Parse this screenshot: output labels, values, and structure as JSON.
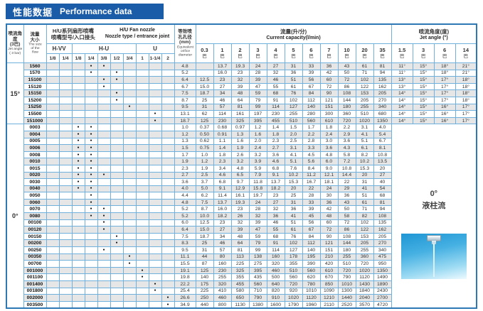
{
  "banner": {
    "title_zh": "性能数据",
    "title_en": "Performance data"
  },
  "header": {
    "col_angle_zh": "喷流角度\n(3巴)",
    "col_angle_en": "Jet angle\n( 3 bar)",
    "col_flow_zh": "流量\n大小",
    "col_flow_en": "The size\nof the\nflow",
    "nozzle_zh": "H/U系列扇形喷嘴\n喷嘴型号/入口接头",
    "nozzle_en": "H/U  Fan nozzle\nNozzle type / entrance joint",
    "groups": [
      "H-VV",
      "H-U",
      "U"
    ],
    "joints": [
      "1/8",
      "1/4",
      "1/8",
      "1/4",
      "3/8",
      "1/2",
      "3/4",
      "1",
      "1-1/4",
      "2"
    ],
    "orifice_zh": "等效喷\n孔孔径\n(mm)",
    "orifice_en": "Equivalent\norifice\ndiameter",
    "capacity_zh": "流量(升/分)",
    "capacity_en": "Current capacity(l/min)",
    "pressures": [
      "0.3",
      "1",
      "2",
      "3",
      "4",
      "5",
      "6",
      "7",
      "10",
      "20",
      "35"
    ],
    "pressure_unit": "巴",
    "angle_zh": "喷流角度(度)",
    "angle_en": "Jet angle (°)",
    "angle_pressures": [
      "1.5",
      "3",
      "6",
      "14"
    ],
    "dot_glyph": "●"
  },
  "groups": [
    {
      "angle": "15°",
      "rows": [
        {
          "model": "1560",
          "joints": [
            3,
            4
          ],
          "orifice": "4.8",
          "flow": [
            "",
            "13.7",
            "19.3",
            "24",
            "27",
            "31",
            "33",
            "36",
            "43",
            "61",
            "81"
          ],
          "angles": [
            "11°",
            "15°",
            "18°",
            "21°"
          ]
        },
        {
          "model": "1570",
          "joints": [
            3,
            5
          ],
          "orifice": "5.2",
          "flow": [
            "",
            "16.0",
            "23",
            "28",
            "32",
            "36",
            "39",
            "42",
            "50",
            "71",
            "94"
          ],
          "angles": [
            "11°",
            "15°",
            "18°",
            "21°"
          ]
        },
        {
          "model": "15100",
          "joints": [
            4,
            5
          ],
          "orifice": "6.4",
          "flow": [
            "12.5",
            "23",
            "32",
            "39",
            "46",
            "51",
            "56",
            "60",
            "72",
            "102",
            "135"
          ],
          "angles": [
            "13°",
            "15°",
            "17°",
            "18°"
          ]
        },
        {
          "model": "15120",
          "joints": [
            4
          ],
          "orifice": "6.7",
          "flow": [
            "15.0",
            "27",
            "39",
            "47",
            "55",
            "61",
            "67",
            "72",
            "86",
            "122",
            "162"
          ],
          "angles": [
            "13°",
            "15°",
            "17°",
            "18°"
          ]
        },
        {
          "model": "15150",
          "joints": [
            5
          ],
          "orifice": "7.5",
          "flow": [
            "18.7",
            "34",
            "48",
            "59",
            "68",
            "76",
            "84",
            "90",
            "108",
            "153",
            "205"
          ],
          "angles": [
            "14°",
            "15°",
            "17°",
            "18°"
          ]
        },
        {
          "model": "15200",
          "joints": [
            5
          ],
          "orifice": "8.7",
          "flow": [
            "25",
            "46",
            "64",
            "79",
            "91",
            "102",
            "112",
            "121",
            "144",
            "205",
            "270"
          ],
          "angles": [
            "14°",
            "15°",
            "17°",
            "18°"
          ]
        },
        {
          "model": "15250",
          "joints": [
            6
          ],
          "orifice": "9.5",
          "flow": [
            "31",
            "57",
            "81",
            "99",
            "114",
            "127",
            "140",
            "151",
            "180",
            "255",
            "340"
          ],
          "angles": [
            "14°",
            "15°",
            "16°",
            "17°"
          ]
        },
        {
          "model": "15500",
          "joints": [
            8
          ],
          "orifice": "13.1",
          "flow": [
            "62",
            "114",
            "161",
            "197",
            "230",
            "255",
            "280",
            "300",
            "360",
            "510",
            "680"
          ],
          "angles": [
            "14°",
            "15°",
            "16°",
            "17°"
          ]
        },
        {
          "model": "151000",
          "joints": [
            8
          ],
          "orifice": "18.7",
          "flow": [
            "125",
            "230",
            "325",
            "395",
            "455",
            "510",
            "560",
            "610",
            "720",
            "1020",
            "1350"
          ],
          "angles": [
            "14°",
            "15°",
            "16°",
            "17°"
          ]
        }
      ]
    },
    {
      "angle": "0°",
      "stream": {
        "angle_label": "0°",
        "type_label": "液柱流"
      },
      "rows": [
        {
          "model": "0003",
          "joints": [
            2,
            3
          ],
          "orifice": "1.0",
          "flow": [
            "0.37",
            "0.68",
            "0.97",
            "1.2",
            "1.4",
            "1.5",
            "1.7",
            "1.8",
            "2.2",
            "3.1",
            "4.0"
          ]
        },
        {
          "model": "0004",
          "joints": [
            2,
            3
          ],
          "orifice": "1.2",
          "flow": [
            "0.50",
            "0.91",
            "1.3",
            "1.6",
            "1.8",
            "2.0",
            "2.2",
            "2.4",
            "2.9",
            "4.1",
            "5.4"
          ]
        },
        {
          "model": "0005",
          "joints": [
            2,
            3
          ],
          "orifice": "1.3",
          "flow": [
            "0.62",
            "1.1",
            "1.6",
            "2.0",
            "2.3",
            "2.5",
            "2.8",
            "3.0",
            "3.6",
            "5.1",
            "6.7"
          ]
        },
        {
          "model": "0006",
          "joints": [
            2,
            3
          ],
          "orifice": "1.5",
          "flow": [
            "0.75",
            "1.4",
            "1.9",
            "2.4",
            "2.7",
            "3.1",
            "3.3",
            "3.6",
            "4.3",
            "6.1",
            "8.1"
          ]
        },
        {
          "model": "0008",
          "joints": [
            2,
            3
          ],
          "orifice": "1.7",
          "flow": [
            "1.0",
            "1.8",
            "2.6",
            "3.2",
            "3.6",
            "4.1",
            "4.5",
            "4.8",
            "5.8",
            "8.2",
            "10.8"
          ]
        },
        {
          "model": "0010",
          "joints": [
            2,
            3
          ],
          "orifice": "1.9",
          "flow": [
            "1.2",
            "2.3",
            "3.2",
            "3.9",
            "4.6",
            "5.1",
            "5.6",
            "6.0",
            "7.2",
            "10.2",
            "13.5"
          ]
        },
        {
          "model": "0015",
          "joints": [
            2,
            3
          ],
          "orifice": "2.3",
          "flow": [
            "1.9",
            "3.4",
            "4.8",
            "5.9",
            "6.8",
            "7.6",
            "8.4",
            "9.0",
            "10.8",
            "15.3",
            "20"
          ]
        },
        {
          "model": "0020",
          "joints": [
            2,
            3,
            4
          ],
          "orifice": "2.7",
          "flow": [
            "2.5",
            "4.6",
            "6.5",
            "7.9",
            "9.1",
            "10.2",
            "11.2",
            "12.1",
            "14.4",
            "20",
            "27"
          ]
        },
        {
          "model": "0030",
          "joints": [
            2,
            3
          ],
          "orifice": "3.6",
          "flow": [
            "3.7",
            "6.8",
            "9.7",
            "11.8",
            "13.7",
            "15.3",
            "16.7",
            "18.1",
            "22",
            "31",
            "40"
          ]
        },
        {
          "model": "0040",
          "joints": [
            2,
            3
          ],
          "orifice": "4.0",
          "flow": [
            "5.0",
            "9.1",
            "12.9",
            "15.8",
            "18.2",
            "20",
            "22",
            "24",
            "29",
            "41",
            "54"
          ]
        },
        {
          "model": "0050",
          "joints": [
            3
          ],
          "orifice": "4.4",
          "flow": [
            "6.2",
            "11.4",
            "16.1",
            "19.7",
            "23",
            "25",
            "28",
            "30",
            "36",
            "51",
            "68"
          ]
        },
        {
          "model": "0060",
          "joints": [
            3
          ],
          "orifice": "4.8",
          "flow": [
            "7.5",
            "13.7",
            "19.3",
            "24",
            "27",
            "31",
            "33",
            "36",
            "43",
            "61",
            "81"
          ]
        },
        {
          "model": "0070",
          "joints": [
            3,
            4
          ],
          "orifice": "5.2",
          "flow": [
            "8.7",
            "16.0",
            "23",
            "28",
            "32",
            "36",
            "39",
            "42",
            "50",
            "71",
            "94"
          ]
        },
        {
          "model": "0080",
          "joints": [
            3,
            4
          ],
          "orifice": "5.2",
          "flow": [
            "10.0",
            "18.2",
            "26",
            "32",
            "36",
            "41",
            "45",
            "48",
            "58",
            "82",
            "108"
          ]
        },
        {
          "model": "00100",
          "joints": [
            4
          ],
          "orifice": "6.0",
          "flow": [
            "12.5",
            "23",
            "32",
            "39",
            "46",
            "51",
            "56",
            "60",
            "72",
            "102",
            "135"
          ]
        },
        {
          "model": "00120",
          "joints": [
            4
          ],
          "orifice": "6.4",
          "flow": [
            "15.0",
            "27",
            "39",
            "47",
            "55",
            "61",
            "67",
            "72",
            "86",
            "122",
            "162"
          ]
        },
        {
          "model": "00150",
          "joints": [
            5
          ],
          "orifice": "7.5",
          "flow": [
            "18.7",
            "34",
            "48",
            "59",
            "68",
            "76",
            "84",
            "90",
            "108",
            "153",
            "205"
          ]
        },
        {
          "model": "00200",
          "joints": [
            5
          ],
          "orifice": "8.3",
          "flow": [
            "25",
            "46",
            "64",
            "79",
            "91",
            "102",
            "112",
            "121",
            "144",
            "205",
            "270"
          ]
        },
        {
          "model": "00250",
          "joints": [
            4
          ],
          "orifice": "9.5",
          "flow": [
            "31",
            "57",
            "81",
            "99",
            "114",
            "127",
            "140",
            "151",
            "180",
            "255",
            "340"
          ]
        },
        {
          "model": "00350",
          "joints": [
            6
          ],
          "orifice": "11.1",
          "flow": [
            "44",
            "80",
            "113",
            "138",
            "160",
            "178",
            "195",
            "210",
            "255",
            "360",
            "475"
          ]
        },
        {
          "model": "00700",
          "joints": [
            6
          ],
          "orifice": "15.5",
          "flow": [
            "87",
            "160",
            "225",
            "275",
            "320",
            "355",
            "390",
            "420",
            "510",
            "720",
            "950"
          ]
        },
        {
          "model": "001000",
          "joints": [
            7
          ],
          "orifice": "19.1",
          "flow": [
            "125",
            "230",
            "325",
            "395",
            "460",
            "510",
            "560",
            "610",
            "720",
            "1020",
            "1350"
          ]
        },
        {
          "model": "001100",
          "joints": [
            7
          ],
          "orifice": "19.8",
          "flow": [
            "140",
            "255",
            "355",
            "435",
            "500",
            "560",
            "620",
            "670",
            "790",
            "1120",
            "1490"
          ]
        },
        {
          "model": "001400",
          "joints": [
            8
          ],
          "orifice": "22.2",
          "flow": [
            "175",
            "320",
            "455",
            "560",
            "640",
            "720",
            "780",
            "850",
            "1010",
            "1430",
            "1890"
          ]
        },
        {
          "model": "001800",
          "joints": [
            8
          ],
          "orifice": "25.4",
          "flow": [
            "225",
            "410",
            "580",
            "710",
            "820",
            "920",
            "1010",
            "1090",
            "1300",
            "1840",
            "2430"
          ]
        },
        {
          "model": "002000",
          "joints": [
            9
          ],
          "orifice": "26.6",
          "flow": [
            "250",
            "460",
            "650",
            "790",
            "910",
            "1020",
            "1120",
            "1210",
            "1440",
            "2040",
            "2700"
          ]
        },
        {
          "model": "003500",
          "joints": [
            9
          ],
          "orifice": "34.9",
          "flow": [
            "440",
            "800",
            "1130",
            "1380",
            "1600",
            "1790",
            "1960",
            "2110",
            "2520",
            "3570",
            "4720"
          ]
        }
      ]
    }
  ]
}
